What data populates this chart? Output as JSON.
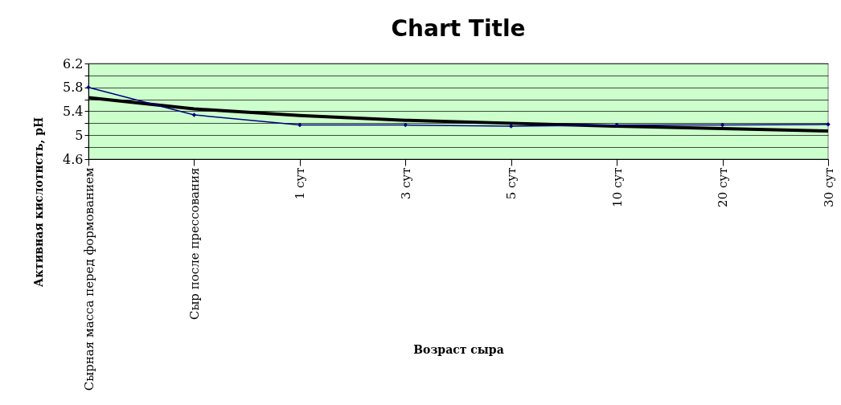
{
  "chart_data": {
    "type": "line",
    "title": "Chart Title",
    "xlabel": "Возраст сыра",
    "ylabel": "Активная кислотнсть, pH",
    "categories": [
      "Сырная масса перед формованием",
      "Сыр после прессования",
      "1 сут",
      "3 сут",
      "5 сут",
      "10 сут",
      "20 сут",
      "30 сут"
    ],
    "series": [
      {
        "color": "#000080",
        "marker": "diamond",
        "values": [
          5.8,
          5.34,
          5.17,
          5.17,
          5.15,
          5.17,
          5.17,
          5.18
        ]
      },
      {
        "color": "#000000",
        "marker": "none",
        "values": [
          5.63,
          5.44,
          5.33,
          5.25,
          5.2,
          5.15,
          5.11,
          5.07
        ]
      }
    ],
    "ylim": [
      4.6,
      6.2
    ],
    "yticks": [
      4.6,
      {
        "value": 4.8,
        "label": null
      },
      5,
      {
        "value": 5.2,
        "label": null
      },
      5.4,
      {
        "value": 5.6,
        "label": null
      },
      5.8,
      {
        "value": 6.0,
        "label": null
      },
      6.2
    ],
    "grid": "y"
  }
}
